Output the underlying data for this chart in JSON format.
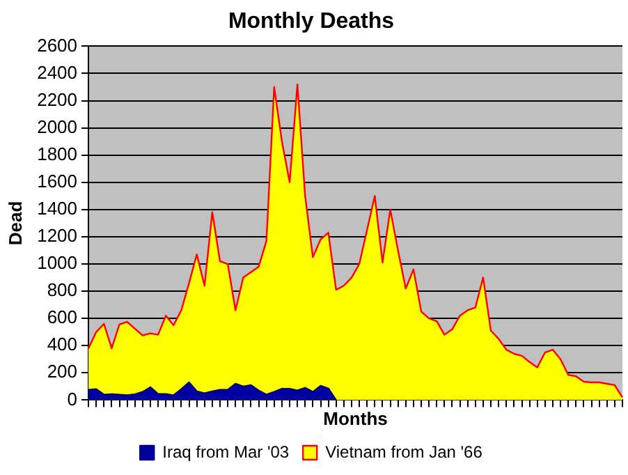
{
  "chart_data": {
    "type": "area",
    "title": "Monthly Deaths",
    "xlabel": "Months",
    "ylabel": "Dead",
    "categories": [
      null,
      null,
      null,
      null,
      null,
      null,
      null,
      null,
      null,
      null,
      null,
      null,
      null,
      null,
      null,
      null,
      null,
      null,
      null,
      null,
      null,
      null,
      null,
      null,
      null,
      null,
      null,
      null,
      null,
      null,
      null,
      null,
      null,
      null,
      null,
      null,
      null,
      null,
      null,
      null,
      null,
      null,
      null,
      null,
      null,
      null,
      null,
      null,
      null,
      null,
      null,
      null,
      null,
      null,
      null,
      null,
      null,
      null,
      null,
      null,
      null,
      null,
      null,
      null,
      null,
      null,
      null,
      null,
      null,
      null
    ],
    "series": [
      {
        "name": "Vietnam from Jan '66",
        "color": "#ffff00",
        "values": [
          380,
          500,
          560,
          380,
          555,
          575,
          525,
          475,
          490,
          480,
          620,
          550,
          660,
          860,
          1070,
          840,
          1380,
          1020,
          1000,
          660,
          900,
          940,
          980,
          1170,
          2300,
          1900,
          1600,
          2320,
          1500,
          1050,
          1180,
          1230,
          810,
          840,
          900,
          1000,
          1250,
          1500,
          1010,
          1400,
          1100,
          820,
          960,
          650,
          600,
          580,
          480,
          520,
          620,
          660,
          680,
          900,
          510,
          450,
          370,
          340,
          325,
          280,
          240,
          350,
          370,
          300,
          185,
          175,
          135,
          130,
          130,
          120,
          110,
          20
        ]
      },
      {
        "name": "Iraq from Mar '03",
        "color": "#0000a0",
        "values": [
          75,
          80,
          40,
          43,
          40,
          36,
          42,
          60,
          94,
          45,
          45,
          35,
          80,
          130,
          64,
          50,
          64,
          75,
          75,
          120,
          100,
          110,
          70,
          40,
          60,
          83,
          83,
          70,
          90,
          60,
          105,
          85,
          0,
          null,
          null,
          null,
          null,
          null,
          null,
          null,
          null,
          null,
          null,
          null,
          null,
          null,
          null,
          null,
          null,
          null,
          null,
          null,
          null,
          null,
          null,
          null,
          null,
          null,
          null,
          null,
          null,
          null,
          null,
          null,
          null,
          null,
          null,
          null,
          null,
          null
        ]
      }
    ],
    "ylim": [
      0,
      2600
    ],
    "yticks": [
      0,
      200,
      400,
      600,
      800,
      1000,
      1200,
      1400,
      1600,
      1800,
      2000,
      2200,
      2400,
      2600
    ],
    "grid": "y",
    "legend": "bottom"
  }
}
